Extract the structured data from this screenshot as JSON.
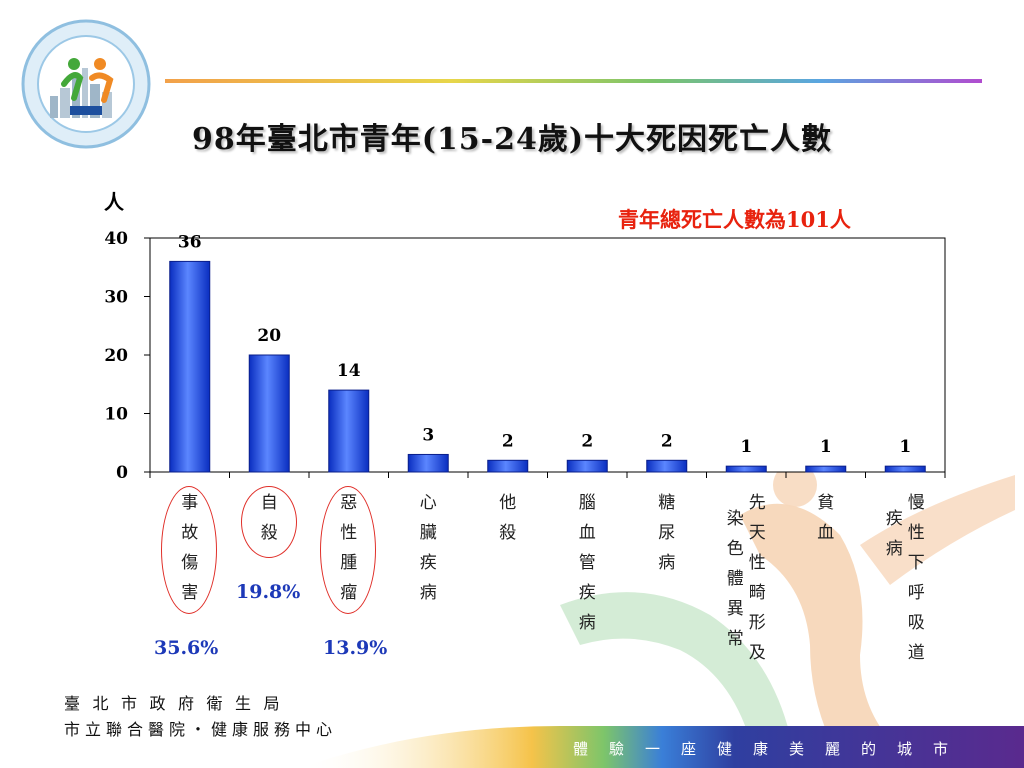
{
  "header": {
    "title": "98年臺北市青年(15-24歲)十大死因死亡人數",
    "y_unit": "人",
    "note": "青年總死亡人數為101人"
  },
  "chart_data": {
    "type": "bar",
    "categories": [
      "事故傷害",
      "自殺",
      "惡性腫瘤",
      "心臟疾病",
      "他殺",
      "腦血管疾病",
      "糖尿病",
      "先天性畸形及染色體異常",
      "貧血",
      "慢性下呼吸道疾病"
    ],
    "values": [
      36,
      20,
      14,
      3,
      2,
      2,
      2,
      1,
      1,
      1
    ],
    "ylim": [
      0,
      40
    ],
    "yticks": [
      0,
      10,
      20,
      30,
      40
    ],
    "grid": true,
    "bar_color": "#1f45e0",
    "percent_labels": [
      "35.6%",
      "19.8%",
      "13.9%"
    ]
  },
  "footer": {
    "line1": "臺北市政府衛生局",
    "line2": "市立聯合醫院‧健康服務中心",
    "slogan": "體驗一座健康美麗的城市"
  }
}
